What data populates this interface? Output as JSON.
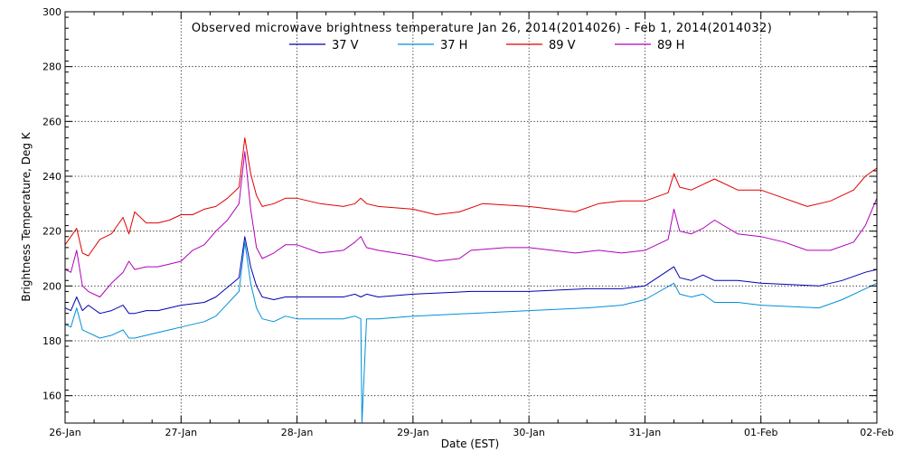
{
  "chart_data": {
    "type": "line",
    "title": "Observed microwave brightness temperature Jan 26, 2014(2014026) - Feb  1, 2014(2014032)",
    "xlabel": "Date (EST)",
    "ylabel": "Brightness Temperature, Deg K",
    "xlim": [
      0,
      7
    ],
    "ylim": [
      150,
      300
    ],
    "grid": true,
    "legend_position": "top-center",
    "x_tick_values": [
      0,
      1,
      2,
      3,
      4,
      5,
      6,
      7
    ],
    "x_tick_labels": [
      "26-Jan",
      "27-Jan",
      "28-Jan",
      "29-Jan",
      "30-Jan",
      "31-Jan",
      "01-Feb",
      "02-Feb"
    ],
    "y_tick_values": [
      160,
      180,
      200,
      220,
      240,
      260,
      280,
      300
    ],
    "y_tick_labels": [
      "160",
      "180",
      "200",
      "220",
      "240",
      "260",
      "280",
      "300"
    ],
    "series": [
      {
        "name": "37 V",
        "color": "#0000b4",
        "x": [
          0,
          0.05,
          0.1,
          0.15,
          0.2,
          0.3,
          0.4,
          0.5,
          0.55,
          0.6,
          0.7,
          0.8,
          0.9,
          1.0,
          1.2,
          1.3,
          1.5,
          1.55,
          1.6,
          1.65,
          1.7,
          1.8,
          1.9,
          2.0,
          2.2,
          2.4,
          2.5,
          2.55,
          2.6,
          2.7,
          3.0,
          3.5,
          4.0,
          4.5,
          4.8,
          5.0,
          5.25,
          5.3,
          5.4,
          5.5,
          5.6,
          5.8,
          6.0,
          6.5,
          6.7,
          6.9,
          7.0
        ],
        "values": [
          192,
          191,
          196,
          191,
          193,
          190,
          191,
          193,
          190,
          190,
          191,
          191,
          192,
          193,
          194,
          196,
          203,
          218,
          207,
          200,
          196,
          195,
          196,
          196,
          196,
          196,
          197,
          196,
          197,
          196,
          197,
          198,
          198,
          199,
          199,
          200,
          207,
          203,
          202,
          204,
          202,
          202,
          201,
          200,
          202,
          205,
          206
        ]
      },
      {
        "name": "37 H",
        "color": "#0090d8",
        "x": [
          0,
          0.05,
          0.1,
          0.15,
          0.2,
          0.3,
          0.4,
          0.5,
          0.55,
          0.6,
          0.7,
          0.8,
          0.9,
          1.0,
          1.2,
          1.3,
          1.5,
          1.55,
          1.6,
          1.65,
          1.7,
          1.8,
          1.9,
          2.0,
          2.2,
          2.4,
          2.5,
          2.55,
          2.56,
          2.6,
          2.7,
          3.0,
          3.5,
          4.0,
          4.5,
          4.8,
          5.0,
          5.25,
          5.3,
          5.4,
          5.5,
          5.6,
          5.8,
          6.0,
          6.5,
          6.7,
          6.9,
          7.0
        ],
        "values": [
          186,
          185,
          192,
          184,
          183,
          181,
          182,
          184,
          181,
          181,
          182,
          183,
          184,
          185,
          187,
          189,
          198,
          216,
          201,
          192,
          188,
          187,
          189,
          188,
          188,
          188,
          189,
          188,
          150,
          188,
          188,
          189,
          190,
          191,
          192,
          193,
          195,
          201,
          197,
          196,
          197,
          194,
          194,
          193,
          192,
          195,
          199,
          201
        ]
      },
      {
        "name": "89 V",
        "color": "#e00000",
        "x": [
          0,
          0.1,
          0.15,
          0.2,
          0.3,
          0.4,
          0.5,
          0.55,
          0.6,
          0.7,
          0.8,
          0.9,
          1.0,
          1.1,
          1.2,
          1.3,
          1.4,
          1.5,
          1.55,
          1.6,
          1.65,
          1.7,
          1.8,
          1.9,
          2.0,
          2.2,
          2.4,
          2.5,
          2.55,
          2.6,
          2.7,
          3.0,
          3.2,
          3.4,
          3.6,
          4.0,
          4.2,
          4.4,
          4.6,
          4.8,
          5.0,
          5.2,
          5.25,
          5.3,
          5.4,
          5.5,
          5.6,
          5.8,
          6.0,
          6.2,
          6.4,
          6.6,
          6.8,
          6.9,
          7.0
        ],
        "values": [
          215,
          221,
          212,
          211,
          217,
          219,
          225,
          219,
          227,
          223,
          223,
          224,
          226,
          226,
          228,
          229,
          232,
          236,
          254,
          241,
          233,
          229,
          230,
          232,
          232,
          230,
          229,
          230,
          232,
          230,
          229,
          228,
          226,
          227,
          230,
          229,
          228,
          227,
          230,
          231,
          231,
          234,
          241,
          236,
          235,
          237,
          239,
          235,
          235,
          232,
          229,
          231,
          235,
          240,
          243
        ]
      },
      {
        "name": "89 H",
        "color": "#b000b8",
        "x": [
          0,
          0.05,
          0.1,
          0.15,
          0.2,
          0.3,
          0.4,
          0.5,
          0.55,
          0.6,
          0.7,
          0.8,
          0.9,
          1.0,
          1.1,
          1.2,
          1.3,
          1.4,
          1.5,
          1.55,
          1.6,
          1.65,
          1.7,
          1.8,
          1.9,
          2.0,
          2.2,
          2.4,
          2.5,
          2.55,
          2.6,
          2.7,
          3.0,
          3.2,
          3.4,
          3.5,
          3.8,
          4.0,
          4.2,
          4.4,
          4.6,
          4.8,
          5.0,
          5.2,
          5.25,
          5.3,
          5.4,
          5.5,
          5.6,
          5.8,
          6.0,
          6.2,
          6.4,
          6.6,
          6.8,
          6.9,
          7.0
        ],
        "values": [
          206,
          205,
          213,
          200,
          198,
          196,
          201,
          205,
          209,
          206,
          207,
          207,
          208,
          209,
          213,
          215,
          220,
          224,
          230,
          249,
          228,
          214,
          210,
          212,
          215,
          215,
          212,
          213,
          216,
          218,
          214,
          213,
          211,
          209,
          210,
          213,
          214,
          214,
          213,
          212,
          213,
          212,
          213,
          217,
          228,
          220,
          219,
          221,
          224,
          219,
          218,
          216,
          213,
          213,
          216,
          222,
          232
        ]
      }
    ]
  }
}
